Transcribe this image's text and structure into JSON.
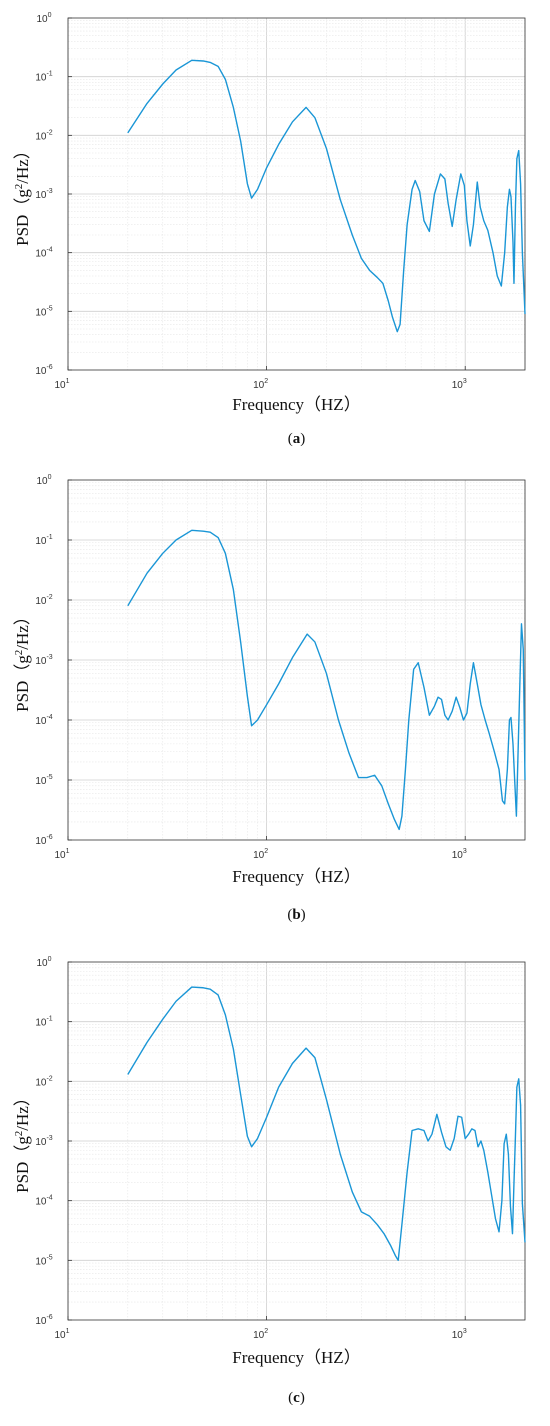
{
  "figure": {
    "colors": {
      "line": "#1a96d6",
      "grid": "#dddddd",
      "axis": "#333333"
    }
  },
  "chart_data": [
    {
      "type": "line",
      "panel": "a",
      "caption_open": "(",
      "caption_letter": "a",
      "caption_close": ")",
      "xlabel": "Frequency（HZ）",
      "ylabel_pre": "PSD（g",
      "ylabel_sup": "2",
      "ylabel_post": "/Hz）",
      "xscale": "log",
      "yscale": "log",
      "xlim": [
        10,
        2000
      ],
      "ylim": [
        1e-06,
        1
      ],
      "grid": true,
      "xticks": [
        {
          "base": "10",
          "exp": "1"
        },
        {
          "base": "10",
          "exp": "2"
        },
        {
          "base": "10",
          "exp": "3"
        }
      ],
      "yticks": [
        {
          "base": "10",
          "exp": "-6"
        },
        {
          "base": "10",
          "exp": "-5"
        },
        {
          "base": "10",
          "exp": "-4"
        },
        {
          "base": "10",
          "exp": "-3"
        },
        {
          "base": "10",
          "exp": "-2"
        },
        {
          "base": "10",
          "exp": "-1"
        },
        {
          "base": "10",
          "exp": "0"
        }
      ],
      "series": [
        {
          "x": [
            20,
            25,
            30,
            35,
            42,
            48,
            52,
            57,
            62,
            68,
            74,
            80,
            84,
            90,
            100,
            115,
            135,
            158,
            175,
            200,
            235,
            270,
            300,
            330,
            360,
            385,
            410,
            430,
            455,
            470,
            490,
            510,
            540,
            560,
            590,
            620,
            660,
            700,
            750,
            790,
            820,
            860,
            900,
            950,
            990,
            1020,
            1060,
            1100,
            1150,
            1190,
            1240,
            1300,
            1380,
            1450,
            1520,
            1580,
            1630,
            1670,
            1700,
            1740,
            1760,
            1790,
            1820,
            1860,
            1900,
            1940,
            2000
          ],
          "y": [
            0.011,
            0.035,
            0.075,
            0.13,
            0.19,
            0.185,
            0.175,
            0.15,
            0.09,
            0.03,
            0.008,
            0.0015,
            0.00085,
            0.0012,
            0.0028,
            0.007,
            0.017,
            0.03,
            0.02,
            0.006,
            0.0008,
            0.0002,
            8e-05,
            5e-05,
            3.8e-05,
            3e-05,
            1.5e-05,
            8e-06,
            4.5e-06,
            6e-06,
            5e-05,
            0.0003,
            0.0012,
            0.0017,
            0.0011,
            0.00035,
            0.00023,
            0.001,
            0.0022,
            0.0018,
            0.0007,
            0.00028,
            0.0008,
            0.0022,
            0.0014,
            0.00035,
            0.00013,
            0.0003,
            0.0016,
            0.0006,
            0.00035,
            0.00024,
            0.0001,
            4e-05,
            2.7e-05,
            0.0001,
            0.0006,
            0.0012,
            0.0009,
            0.00015,
            3e-05,
            0.0006,
            0.004,
            0.0055,
            0.0015,
            0.0001,
            9e-06
          ]
        }
      ]
    },
    {
      "type": "line",
      "panel": "b",
      "caption_open": "(",
      "caption_letter": "b",
      "caption_close": ")",
      "xlabel": "Frequency（HZ）",
      "ylabel_pre": "PSD（g",
      "ylabel_sup": "2",
      "ylabel_post": "/Hz）",
      "xscale": "log",
      "yscale": "log",
      "xlim": [
        10,
        2000
      ],
      "ylim": [
        1e-06,
        1
      ],
      "grid": true,
      "xticks": [
        {
          "base": "10",
          "exp": "1"
        },
        {
          "base": "10",
          "exp": "2"
        },
        {
          "base": "10",
          "exp": "3"
        }
      ],
      "yticks": [
        {
          "base": "10",
          "exp": "-6"
        },
        {
          "base": "10",
          "exp": "-5"
        },
        {
          "base": "10",
          "exp": "-4"
        },
        {
          "base": "10",
          "exp": "-3"
        },
        {
          "base": "10",
          "exp": "-2"
        },
        {
          "base": "10",
          "exp": "-1"
        },
        {
          "base": "10",
          "exp": "0"
        }
      ],
      "series": [
        {
          "x": [
            20,
            25,
            30,
            35,
            42,
            48,
            52,
            57,
            62,
            68,
            74,
            80,
            84,
            90,
            100,
            115,
            135,
            160,
            175,
            200,
            230,
            260,
            290,
            320,
            350,
            380,
            410,
            440,
            465,
            480,
            500,
            520,
            550,
            580,
            620,
            660,
            700,
            730,
            760,
            790,
            820,
            860,
            900,
            940,
            980,
            1020,
            1060,
            1100,
            1150,
            1200,
            1260,
            1320,
            1400,
            1480,
            1540,
            1580,
            1630,
            1670,
            1700,
            1740,
            1780,
            1810,
            1840,
            1880,
            1920,
            1960,
            2000
          ],
          "y": [
            0.008,
            0.028,
            0.06,
            0.1,
            0.145,
            0.14,
            0.135,
            0.11,
            0.06,
            0.015,
            0.002,
            0.00025,
            8e-05,
            0.0001,
            0.00018,
            0.0004,
            0.0011,
            0.0027,
            0.002,
            0.0006,
            0.0001,
            2.8e-05,
            1.1e-05,
            1.1e-05,
            1.2e-05,
            8e-06,
            4e-06,
            2.2e-06,
            1.5e-06,
            2.5e-06,
            1.5e-05,
            0.0001,
            0.0007,
            0.0009,
            0.00035,
            0.00012,
            0.00017,
            0.00024,
            0.00022,
            0.00012,
            0.0001,
            0.00014,
            0.00024,
            0.00016,
            0.0001,
            0.00013,
            0.0004,
            0.0009,
            0.0004,
            0.00018,
            0.0001,
            6e-05,
            3e-05,
            1.5e-05,
            4.5e-06,
            4e-06,
            1.5e-05,
            0.0001,
            0.00011,
            4e-05,
            8e-06,
            2.5e-06,
            2e-05,
            0.0003,
            0.004,
            0.0015,
            1e-05
          ]
        }
      ]
    },
    {
      "type": "line",
      "panel": "c",
      "caption_open": "(",
      "caption_letter": "c",
      "caption_close": ")",
      "xlabel": "Frequency（HZ）",
      "ylabel_pre": "PSD（g",
      "ylabel_sup": "2",
      "ylabel_post": "/Hz）",
      "xscale": "log",
      "yscale": "log",
      "xlim": [
        10,
        2000
      ],
      "ylim": [
        1e-06,
        1
      ],
      "grid": true,
      "xticks": [
        {
          "base": "10",
          "exp": "1"
        },
        {
          "base": "10",
          "exp": "2"
        },
        {
          "base": "10",
          "exp": "3"
        }
      ],
      "yticks": [
        {
          "base": "10",
          "exp": "-6"
        },
        {
          "base": "10",
          "exp": "-5"
        },
        {
          "base": "10",
          "exp": "-4"
        },
        {
          "base": "10",
          "exp": "-3"
        },
        {
          "base": "10",
          "exp": "-2"
        },
        {
          "base": "10",
          "exp": "-1"
        },
        {
          "base": "10",
          "exp": "0"
        }
      ],
      "series": [
        {
          "x": [
            20,
            25,
            30,
            35,
            42,
            48,
            52,
            57,
            62,
            68,
            74,
            80,
            84,
            90,
            100,
            115,
            135,
            158,
            175,
            200,
            235,
            270,
            300,
            330,
            360,
            390,
            420,
            445,
            460,
            480,
            510,
            540,
            580,
            620,
            650,
            680,
            720,
            760,
            800,
            840,
            880,
            920,
            960,
            1000,
            1040,
            1080,
            1120,
            1160,
            1200,
            1240,
            1300,
            1360,
            1420,
            1480,
            1530,
            1570,
            1610,
            1650,
            1690,
            1730,
            1760,
            1790,
            1820,
            1860,
            1900,
            1940,
            2000
          ],
          "y": [
            0.013,
            0.045,
            0.11,
            0.22,
            0.38,
            0.37,
            0.35,
            0.28,
            0.13,
            0.035,
            0.006,
            0.0012,
            0.0008,
            0.0011,
            0.0025,
            0.008,
            0.02,
            0.036,
            0.025,
            0.005,
            0.0006,
            0.00014,
            6.5e-05,
            5.5e-05,
            4e-05,
            2.8e-05,
            1.8e-05,
            1.2e-05,
            1e-05,
            4e-05,
            0.0003,
            0.0015,
            0.0016,
            0.0015,
            0.001,
            0.0013,
            0.0028,
            0.0014,
            0.0008,
            0.0007,
            0.0011,
            0.0026,
            0.0025,
            0.0011,
            0.0013,
            0.0016,
            0.0015,
            0.0008,
            0.001,
            0.0007,
            0.0003,
            0.00012,
            5e-05,
            3e-05,
            0.0001,
            0.0009,
            0.0013,
            0.0006,
            8e-05,
            2.8e-05,
            0.0002,
            0.0012,
            0.008,
            0.011,
            0.004,
            9e-05,
            2e-05
          ]
        }
      ]
    }
  ]
}
